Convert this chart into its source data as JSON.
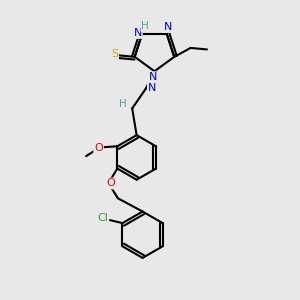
{
  "background_color": "#e8e8e8",
  "bond_color": "#000000",
  "atom_colors": {
    "N": "#0000dd",
    "S": "#ccaa00",
    "O": "#ee0000",
    "Cl": "#22aa22",
    "H": "#44aaaa",
    "C": "#000000"
  }
}
